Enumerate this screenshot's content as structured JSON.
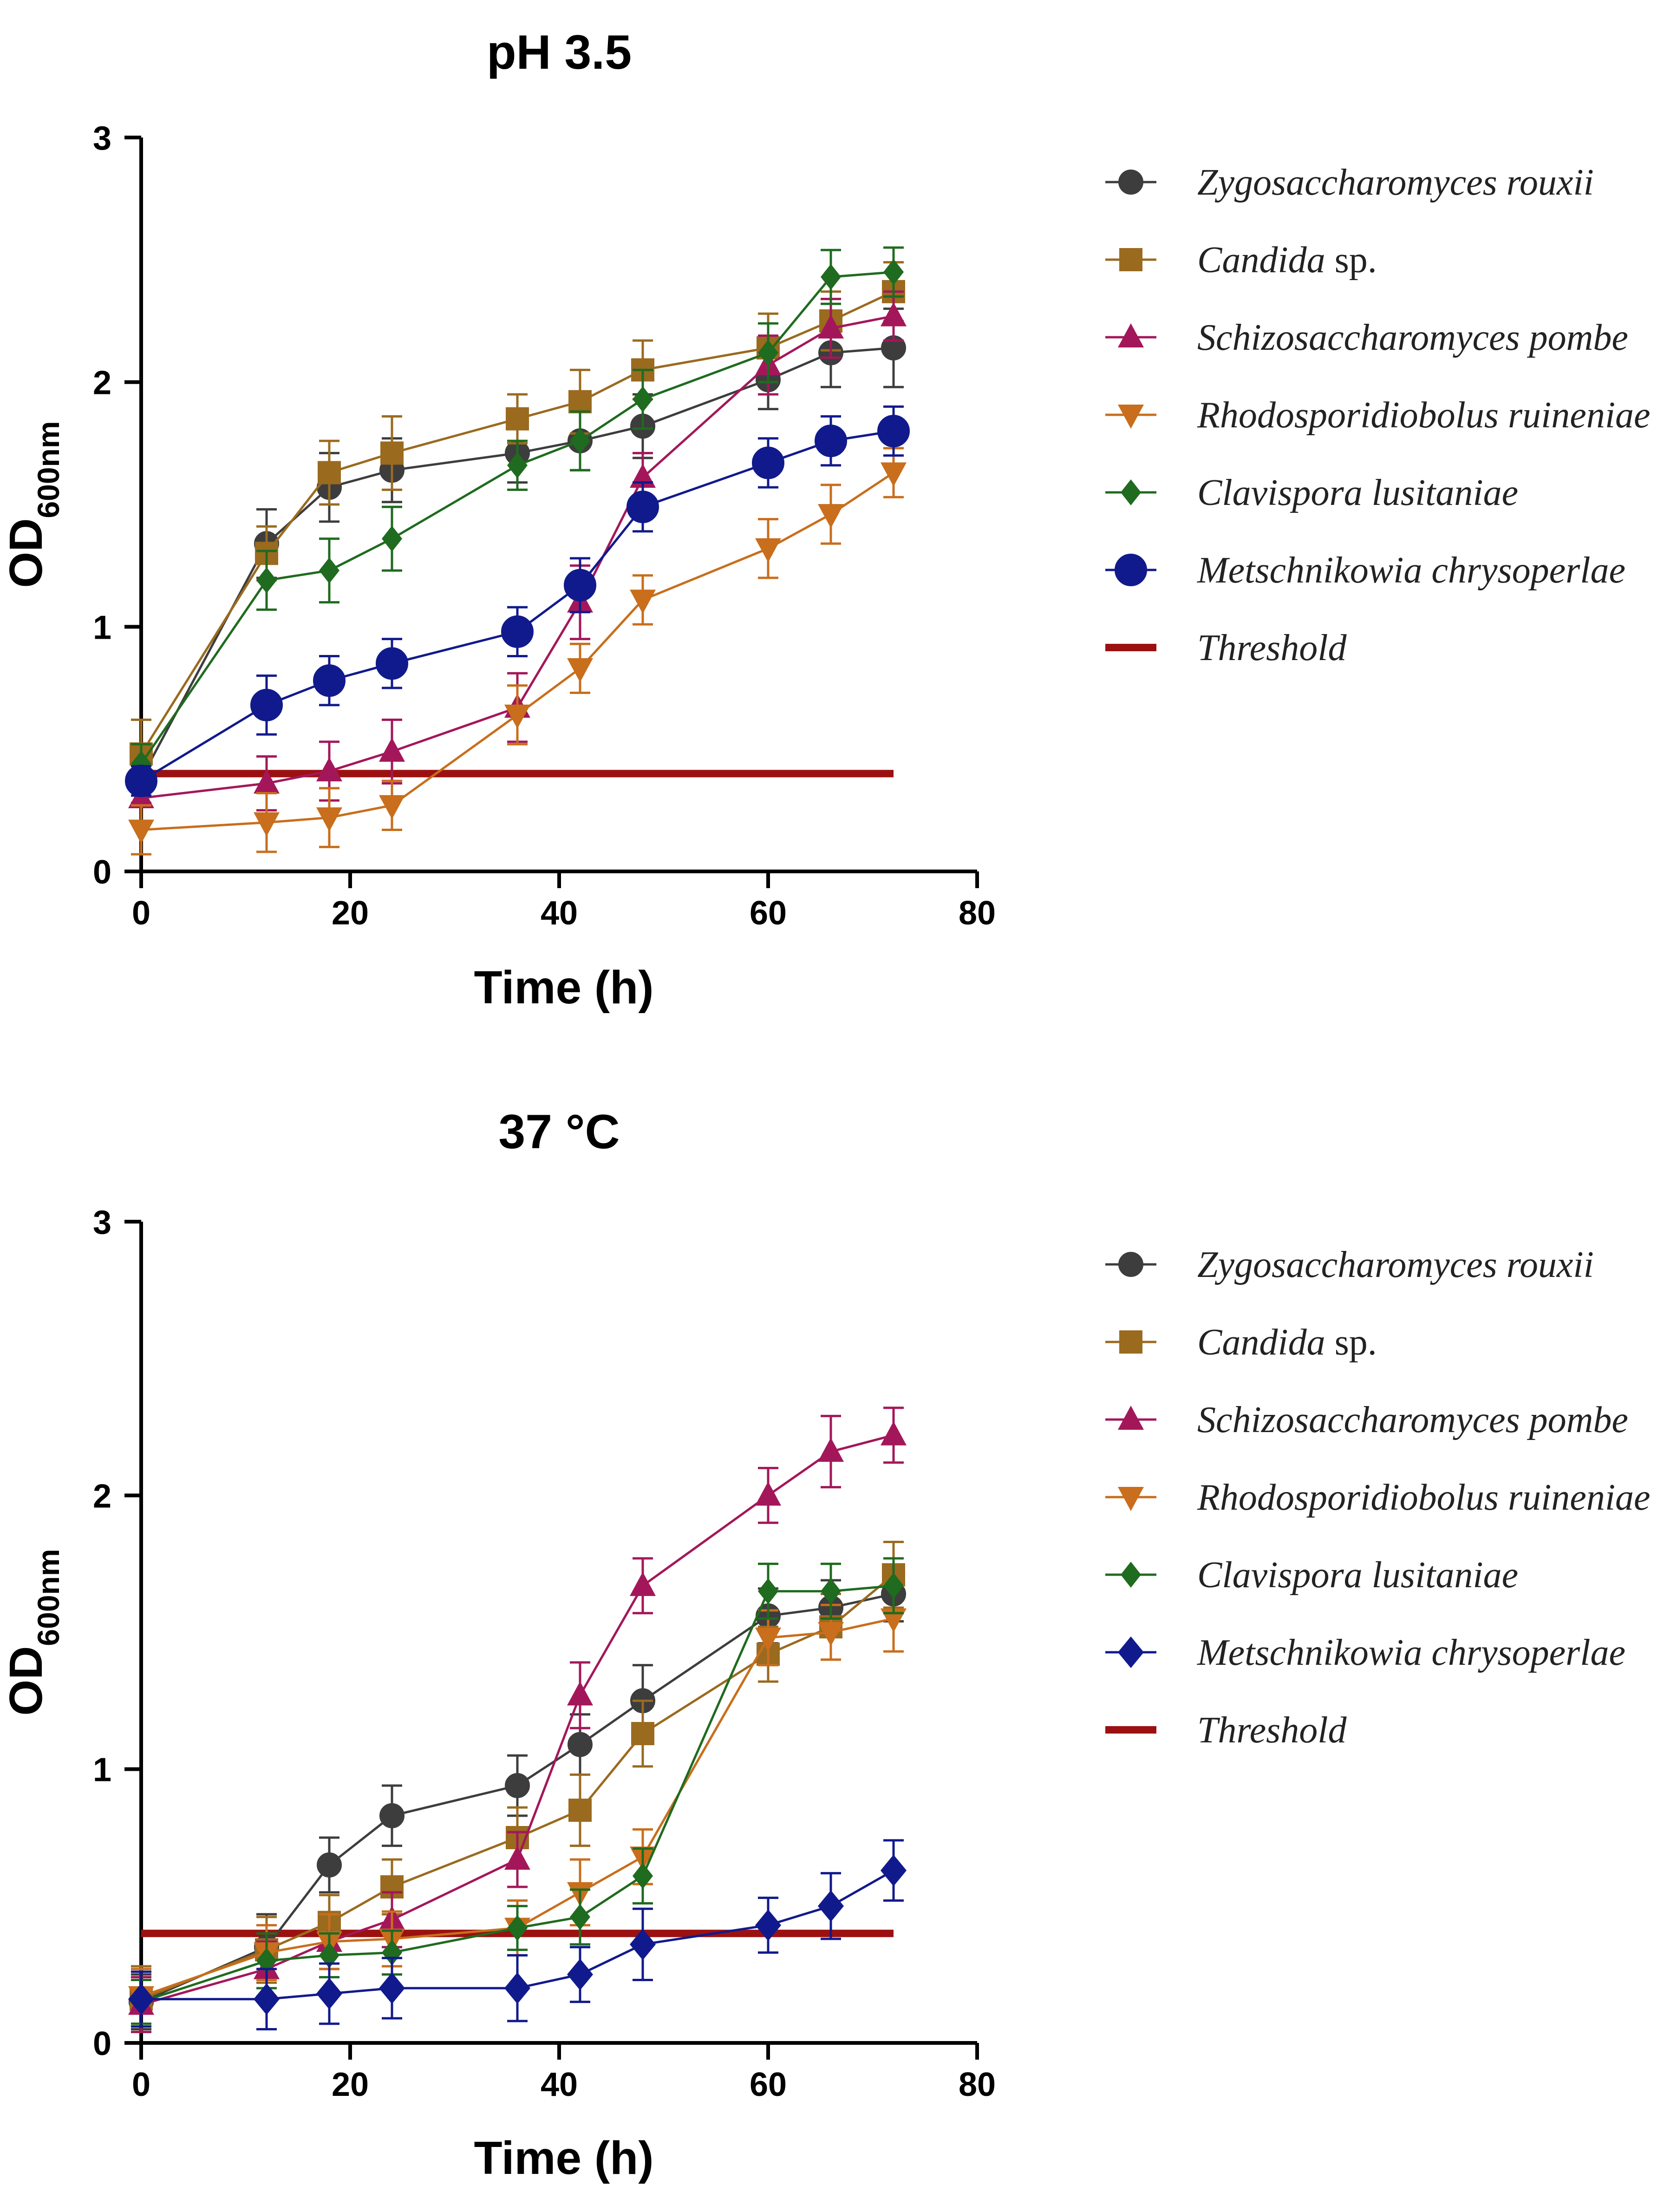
{
  "chart_data": [
    {
      "type": "line",
      "title": "pH 3.5",
      "xlabel": "Time (h)",
      "ylabel": {
        "main": "OD",
        "sub": "600nm"
      },
      "xlim": [
        0,
        80
      ],
      "ylim": [
        0,
        3
      ],
      "xticks": [
        "0",
        "20",
        "40",
        "60",
        "80"
      ],
      "yticks": [
        "0",
        "1",
        "2",
        "3"
      ],
      "threshold": {
        "name": "Threshold",
        "y": 0.4,
        "x": [
          0,
          72
        ],
        "color": "#9b1111"
      },
      "series": [
        {
          "name": "Zygosaccharomyces rouxii",
          "italic": "Zygosaccharomyces rouxii",
          "plain": "",
          "marker": "circle",
          "color": "#3d3d3d",
          "x": [
            0,
            12,
            18,
            24,
            36,
            42,
            48,
            60,
            66,
            72
          ],
          "y": [
            0.38,
            1.34,
            1.57,
            1.64,
            1.71,
            1.76,
            1.82,
            2.01,
            2.12,
            2.14
          ],
          "err": [
            0.1,
            0.14,
            0.14,
            0.13,
            0.12,
            0.12,
            0.13,
            0.12,
            0.14,
            0.16
          ]
        },
        {
          "name": "Candida sp.",
          "italic": "Candida",
          "plain": " sp.",
          "marker": "square",
          "color": "#9a6a1f",
          "x": [
            0,
            12,
            18,
            24,
            36,
            42,
            48,
            60,
            66,
            72
          ],
          "y": [
            0.48,
            1.3,
            1.63,
            1.71,
            1.85,
            1.92,
            2.05,
            2.14,
            2.25,
            2.37
          ],
          "err": [
            0.14,
            0.11,
            0.13,
            0.15,
            0.1,
            0.13,
            0.12,
            0.14,
            0.12,
            0.12
          ]
        },
        {
          "name": "Schizosaccharomyces pombe",
          "italic": "Schizosaccharomyces pombe",
          "plain": "",
          "marker": "triangle-up",
          "color": "#a3175a",
          "x": [
            0,
            12,
            18,
            24,
            36,
            42,
            48,
            60,
            66,
            72
          ],
          "y": [
            0.3,
            0.36,
            0.41,
            0.49,
            0.67,
            1.1,
            1.61,
            2.07,
            2.22,
            2.27
          ],
          "err": [
            0.1,
            0.11,
            0.12,
            0.13,
            0.14,
            0.15,
            0.1,
            0.12,
            0.12,
            0.1
          ]
        },
        {
          "name": "Rhodosporidiobolus ruineniae",
          "italic": "Rhodosporidiobolus ruineniae",
          "plain": "",
          "marker": "triangle-down",
          "color": "#c86e1c",
          "x": [
            0,
            12,
            18,
            24,
            36,
            42,
            48,
            60,
            66,
            72
          ],
          "y": [
            0.17,
            0.2,
            0.22,
            0.27,
            0.64,
            0.83,
            1.11,
            1.32,
            1.46,
            1.63
          ],
          "err": [
            0.1,
            0.12,
            0.12,
            0.1,
            0.12,
            0.1,
            0.1,
            0.12,
            0.12,
            0.1
          ]
        },
        {
          "name": "Clavispora lusitaniae",
          "italic": "Clavispora lusitaniae",
          "plain": "",
          "marker": "diamond",
          "color": "#1f6b1f",
          "x": [
            0,
            12,
            18,
            24,
            36,
            42,
            48,
            60,
            66,
            72
          ],
          "y": [
            0.44,
            1.19,
            1.23,
            1.36,
            1.66,
            1.76,
            1.93,
            2.12,
            2.43,
            2.45
          ],
          "err": [
            0.08,
            0.12,
            0.13,
            0.13,
            0.1,
            0.12,
            0.12,
            0.12,
            0.11,
            0.1
          ]
        },
        {
          "name": "Metschnikowia chrysoperlae",
          "italic": "Metschnikowia chrysoperlae",
          "plain": "",
          "marker": "circle-lg",
          "color": "#111a8c",
          "x": [
            0,
            12,
            18,
            24,
            36,
            42,
            48,
            60,
            66,
            72
          ],
          "y": [
            0.37,
            0.68,
            0.78,
            0.85,
            0.98,
            1.17,
            1.49,
            1.67,
            1.76,
            1.8
          ],
          "err": [
            0.06,
            0.12,
            0.1,
            0.1,
            0.1,
            0.11,
            0.1,
            0.1,
            0.1,
            0.1
          ]
        }
      ]
    },
    {
      "type": "line",
      "title": "37 °C",
      "xlabel": "Time (h)",
      "ylabel": {
        "main": "OD",
        "sub": "600nm"
      },
      "xlim": [
        0,
        80
      ],
      "ylim": [
        0,
        3
      ],
      "xticks": [
        "0",
        "20",
        "40",
        "60",
        "80"
      ],
      "yticks": [
        "0",
        "1",
        "2",
        "3"
      ],
      "threshold": {
        "name": "Threshold",
        "y": 0.4,
        "x": [
          0,
          72
        ],
        "color": "#9b1111"
      },
      "series": [
        {
          "name": "Zygosaccharomyces rouxii",
          "italic": "Zygosaccharomyces rouxii",
          "plain": "",
          "marker": "circle",
          "color": "#3d3d3d",
          "x": [
            0,
            12,
            18,
            24,
            36,
            42,
            48,
            60,
            66,
            72
          ],
          "y": [
            0.15,
            0.35,
            0.65,
            0.83,
            0.94,
            1.09,
            1.25,
            1.56,
            1.59,
            1.64
          ],
          "err": [
            0.1,
            0.12,
            0.1,
            0.11,
            0.11,
            0.11,
            0.13,
            0.1,
            0.1,
            0.1
          ]
        },
        {
          "name": "Candida sp.",
          "italic": "Candida",
          "plain": " sp.",
          "marker": "square",
          "color": "#9a6a1f",
          "x": [
            0,
            12,
            18,
            24,
            36,
            42,
            48,
            60,
            66,
            72
          ],
          "y": [
            0.16,
            0.34,
            0.44,
            0.57,
            0.75,
            0.85,
            1.13,
            1.42,
            1.52,
            1.71
          ],
          "err": [
            0.12,
            0.12,
            0.1,
            0.1,
            0.11,
            0.13,
            0.12,
            0.1,
            0.12,
            0.12
          ]
        },
        {
          "name": "Schizosaccharomyces pombe",
          "italic": "Schizosaccharomyces pombe",
          "plain": "",
          "marker": "triangle-up",
          "color": "#a3175a",
          "x": [
            0,
            12,
            18,
            24,
            36,
            42,
            48,
            60,
            66,
            72
          ],
          "y": [
            0.14,
            0.27,
            0.37,
            0.45,
            0.67,
            1.27,
            1.67,
            2.0,
            2.16,
            2.22
          ],
          "err": [
            0.1,
            0.1,
            0.1,
            0.1,
            0.1,
            0.12,
            0.1,
            0.1,
            0.13,
            0.1
          ]
        },
        {
          "name": "Rhodosporidiobolus ruineniae",
          "italic": "Rhodosporidiobolus ruineniae",
          "plain": "",
          "marker": "triangle-down",
          "color": "#c86e1c",
          "x": [
            0,
            12,
            18,
            24,
            36,
            42,
            48,
            60,
            66,
            72
          ],
          "y": [
            0.17,
            0.33,
            0.37,
            0.38,
            0.42,
            0.55,
            0.68,
            1.48,
            1.5,
            1.55
          ],
          "err": [
            0.1,
            0.1,
            0.1,
            0.1,
            0.1,
            0.12,
            0.1,
            0.1,
            0.1,
            0.12
          ]
        },
        {
          "name": "Clavispora lusitaniae",
          "italic": "Clavispora lusitaniae",
          "plain": "",
          "marker": "diamond",
          "color": "#1f6b1f",
          "x": [
            0,
            12,
            18,
            24,
            36,
            42,
            48,
            60,
            66,
            72
          ],
          "y": [
            0.15,
            0.3,
            0.32,
            0.33,
            0.42,
            0.46,
            0.61,
            1.65,
            1.65,
            1.67
          ],
          "err": [
            0.08,
            0.1,
            0.08,
            0.08,
            0.08,
            0.1,
            0.1,
            0.1,
            0.1,
            0.1
          ]
        },
        {
          "name": "Metschnikowia chrysoperlae",
          "italic": "Metschnikowia chrysoperlae",
          "plain": "",
          "marker": "diamond-lg",
          "color": "#111a8c",
          "x": [
            0,
            12,
            18,
            24,
            36,
            42,
            48,
            60,
            66,
            72
          ],
          "y": [
            0.16,
            0.16,
            0.18,
            0.2,
            0.2,
            0.25,
            0.36,
            0.43,
            0.5,
            0.63
          ],
          "err": [
            0.1,
            0.11,
            0.11,
            0.11,
            0.12,
            0.1,
            0.13,
            0.1,
            0.12,
            0.11
          ]
        }
      ]
    }
  ]
}
